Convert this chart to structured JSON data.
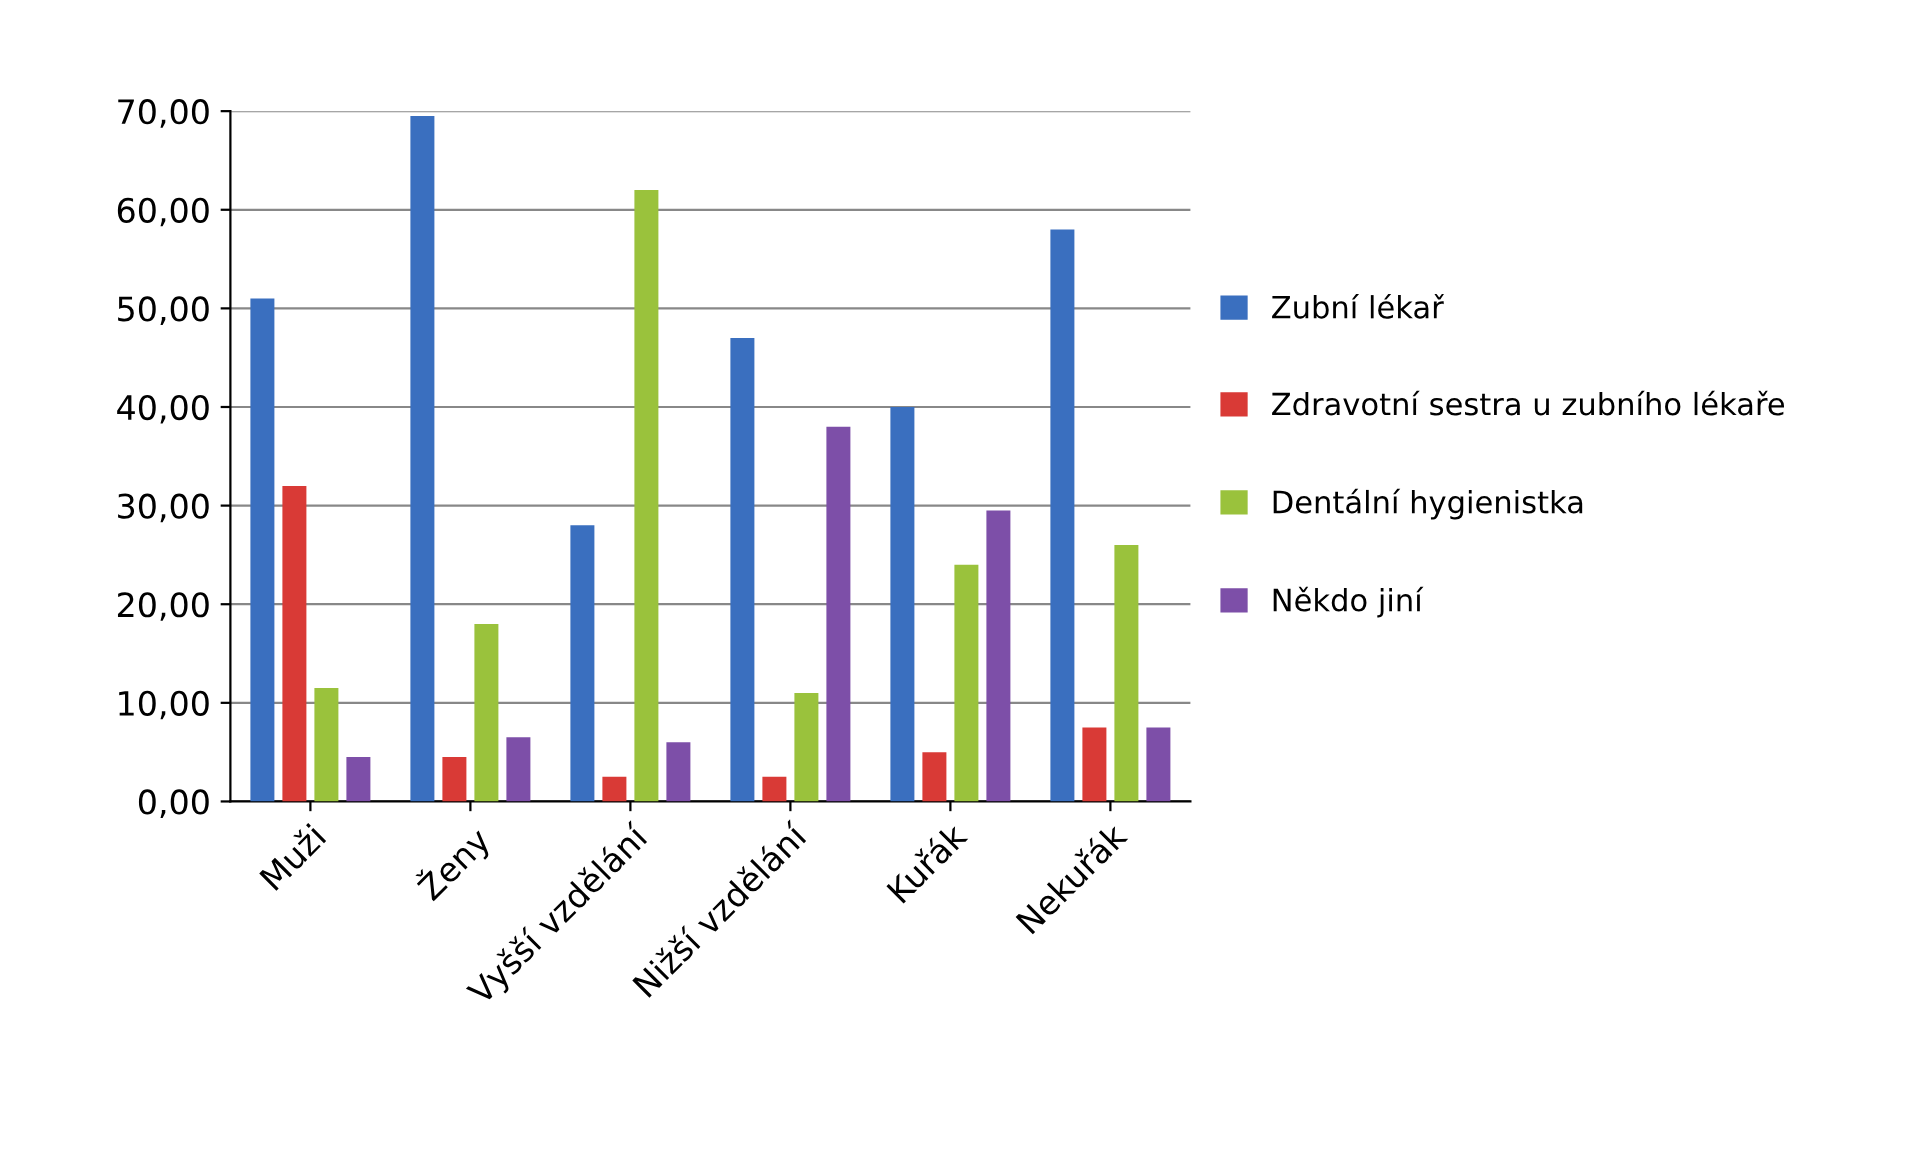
{
  "chart_data": {
    "type": "bar",
    "categories": [
      "Muži",
      "Ženy",
      "Vyšší vzdělání",
      "Nižší vzdělání",
      "Kuřák",
      "Nekuřák"
    ],
    "series": [
      {
        "name": "Zubní lékař",
        "color": "#3a6fbf",
        "values": [
          51,
          69.5,
          28,
          47,
          40,
          58
        ]
      },
      {
        "name": "Zdravotní sestra u zubního lékaře",
        "color": "#d93a36",
        "values": [
          32,
          4.5,
          2.5,
          2.5,
          5,
          7.5
        ]
      },
      {
        "name": "Dentální hygienistka",
        "color": "#9ac23c",
        "values": [
          11.5,
          18,
          62,
          11,
          24,
          26
        ]
      },
      {
        "name": "Někdo jiní",
        "color": "#7d4fa8",
        "values": [
          4.5,
          6.5,
          6,
          38,
          29.5,
          7.5
        ]
      }
    ],
    "ylim": [
      0,
      70
    ],
    "yticks": [
      {
        "value": 0,
        "label": "0,00"
      },
      {
        "value": 10,
        "label": "10,00"
      },
      {
        "value": 20,
        "label": "20,00"
      },
      {
        "value": 30,
        "label": "30,00"
      },
      {
        "value": 40,
        "label": "40,00"
      },
      {
        "value": 50,
        "label": "50,00"
      },
      {
        "value": 60,
        "label": "60,00"
      },
      {
        "value": 70,
        "label": "70,00"
      }
    ],
    "grid": "y",
    "legend": "right"
  }
}
